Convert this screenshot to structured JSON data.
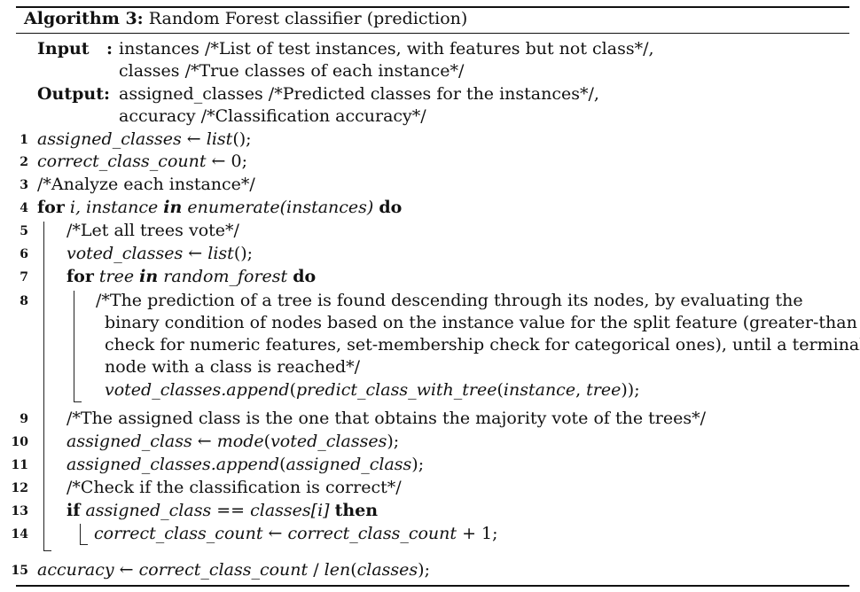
{
  "caption": {
    "label": "Algorithm 3:",
    "title": "Random Forest classifier (prediction)"
  },
  "io": {
    "input_label": "Input",
    "output_label": "Output:",
    "input_colon": ":",
    "input_1": "instances /*List of test instances, with features but not class*/,",
    "input_2": "classes /*True classes of each instance*/",
    "output_1": "assigned_classes /*Predicted classes for the instances*/,",
    "output_2": "accuracy /*Classification accuracy*/"
  },
  "lines": [
    {
      "n": "1"
    },
    {
      "n": "2"
    },
    {
      "n": "3"
    },
    {
      "n": "4"
    },
    {
      "n": "5"
    },
    {
      "n": "6"
    },
    {
      "n": "7"
    },
    {
      "n": "8"
    },
    {
      "n": "9"
    },
    {
      "n": "10"
    },
    {
      "n": "11"
    },
    {
      "n": "12"
    },
    {
      "n": "13"
    },
    {
      "n": "14"
    },
    {
      "n": "15"
    }
  ],
  "code": {
    "l1_var": "assigned_classes",
    "l1_arrow": " ← ",
    "l1_rhs": "list",
    "l1_tail": "();",
    "l2_var": "correct_class_count",
    "l2_rhs": " ← 0;",
    "l3": "/*Analyze each instance*/",
    "l4_for": "for",
    "l4_i": " i, instance ",
    "l4_in": "in",
    "l4_enum": " enumerate(instances) ",
    "l4_do": "do",
    "l5": "/*Let all trees vote*/",
    "l6_var": "voted_classes",
    "l6_arrow": " ← ",
    "l6_rhs": "list",
    "l6_tail": "();",
    "l7_for": "for",
    "l7_tree": " tree ",
    "l7_in": "in",
    "l7_rf": " random_forest ",
    "l7_do": "do",
    "l8_a": "/*The prediction of a tree is found descending through its nodes, by evaluating the",
    "l8_b": "binary condition of nodes based on the instance value for the split feature (greater-than",
    "l8_c": "check for numeric features, set-membership check for categorical ones), until a terminal",
    "l8_d": "node with a class is reached*/",
    "l8_e_obj": "voted_classes.append",
    "l8_e_p1": "(",
    "l8_e_fn": "predict_class_with_tree",
    "l8_e_p2": "(",
    "l8_e_a1": "instance",
    "l8_e_comma": ", ",
    "l8_e_a2": "tree",
    "l8_e_end": "));",
    "l9": "/*The assigned class is the one that obtains the majority vote of the trees*/",
    "l10_var": "assigned_class",
    "l10_arrow": " ← ",
    "l10_fn": "mode",
    "l10_p": "(",
    "l10_arg": "voted_classes",
    "l10_end": ");",
    "l11_obj": "assigned_classes.append",
    "l11_p": "(",
    "l11_arg": "assigned_class",
    "l11_end": ");",
    "l12": "/*Check if the classification is correct*/",
    "l13_if": "if",
    "l13_cond": " assigned_class == classes[i] ",
    "l13_then": "then",
    "l14_var": "correct_class_count",
    "l14_arrow": " ← ",
    "l14_rhs": "correct_class_count",
    "l14_tail": " + 1;",
    "l15_var": "accuracy",
    "l15_arrow": " ← ",
    "l15_a": "correct_class_count",
    "l15_slash": " / ",
    "l15_fn": "len",
    "l15_p": "(",
    "l15_arg": "classes",
    "l15_end": ");"
  }
}
